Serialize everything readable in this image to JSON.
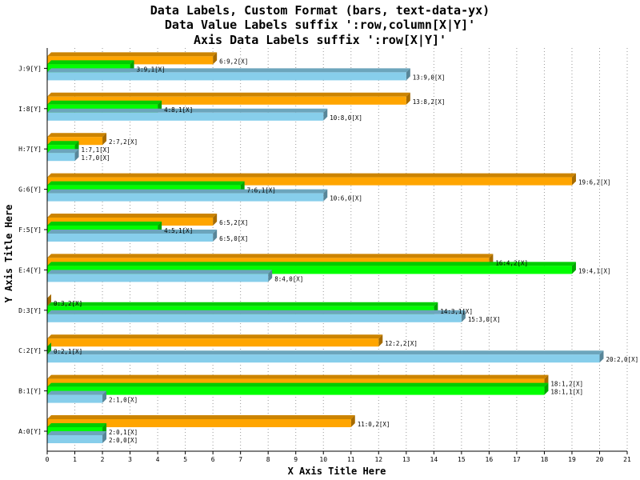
{
  "chart_data": {
    "type": "bar",
    "orientation": "horizontal",
    "title": [
      "Data Labels, Custom Format (bars, text-data-yx)",
      "Data Value Labels suffix ':row,column[X|Y]'",
      "Axis Data Labels suffix ':row[X|Y]'"
    ],
    "xlabel": "X Axis Title Here",
    "ylabel": "Y Axis Title Here",
    "xlim": [
      0,
      21
    ],
    "x_ticks": [
      "0",
      "1",
      "2",
      "3",
      "4",
      "5",
      "6",
      "7",
      "8",
      "9",
      "10",
      "11",
      "12",
      "13",
      "14",
      "15",
      "16",
      "17",
      "18",
      "19",
      "20",
      "21"
    ],
    "grid": "vertical-dotted",
    "categories": [
      "A:0[Y]",
      "B:1[Y]",
      "C:2[Y]",
      "D:3[Y]",
      "E:4[Y]",
      "F:5[Y]",
      "G:6[Y]",
      "H:7[Y]",
      "I:8[Y]",
      "J:9[Y]"
    ],
    "series": [
      {
        "color": "#87ceeb",
        "values": [
          2,
          2,
          20,
          15,
          8,
          6,
          10,
          1,
          10,
          13
        ],
        "labels": [
          "2:0,0[X]",
          "2:1,0[X]",
          "20:2,0[X]",
          "15:3,0[X]",
          "8:4,0[X]",
          "6:5,0[X]",
          "10:6,0[X]",
          "1:7,0[X]",
          "10:8,0[X]",
          "13:9,0[X]"
        ]
      },
      {
        "color": "#00ff00",
        "values": [
          2,
          18,
          0,
          14,
          19,
          4,
          7,
          1,
          4,
          3
        ],
        "labels": [
          "2:0,1[X]",
          "18:1,1[X]",
          "0:2,1[X]",
          "14:3,1[X]",
          "19:4,1[X]",
          "4:5,1[X]",
          "7:6,1[X]",
          "1:7,1[X]",
          "4:8,1[X]",
          "3:9,1[X]"
        ]
      },
      {
        "color": "#ffa500",
        "values": [
          11,
          18,
          12,
          0,
          16,
          6,
          19,
          2,
          13,
          6
        ],
        "labels": [
          "11:0,2[X]",
          "18:1,2[X]",
          "12:2,2[X]",
          "0:3,2[X]",
          "16:4,2[X]",
          "6:5,2[X]",
          "19:6,2[X]",
          "2:7,2[X]",
          "13:8,2[X]",
          "6:9,2[X]"
        ]
      }
    ]
  }
}
